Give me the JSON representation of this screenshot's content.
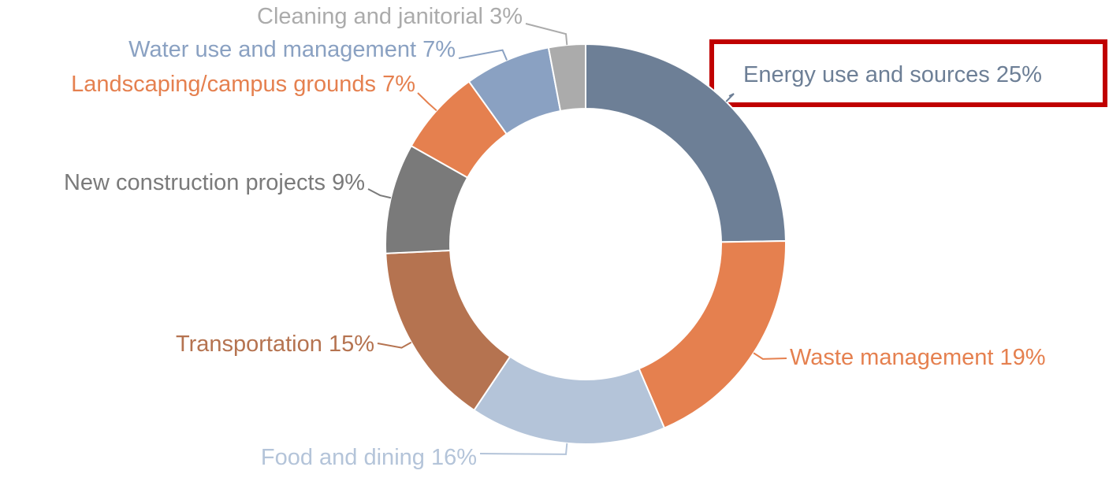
{
  "chart_data": {
    "type": "donut",
    "categories": [
      "Energy use and sources",
      "Waste management",
      "Food and dining",
      "Transportation",
      "New construction projects",
      "Landscaping/campus grounds",
      "Water use and management",
      "Cleaning and janitorial"
    ],
    "values": [
      25,
      19,
      16,
      15,
      9,
      7,
      7,
      3
    ],
    "value_labels": [
      "25%",
      "19%",
      "16%",
      "15%",
      "9%",
      "7%",
      "7%",
      "3%"
    ],
    "colors": [
      "#6d7f96",
      "#e5804f",
      "#b4c4d9",
      "#b57350",
      "#7a7a7a",
      "#e5804f",
      "#8aa1c2",
      "#ababab"
    ]
  }
}
